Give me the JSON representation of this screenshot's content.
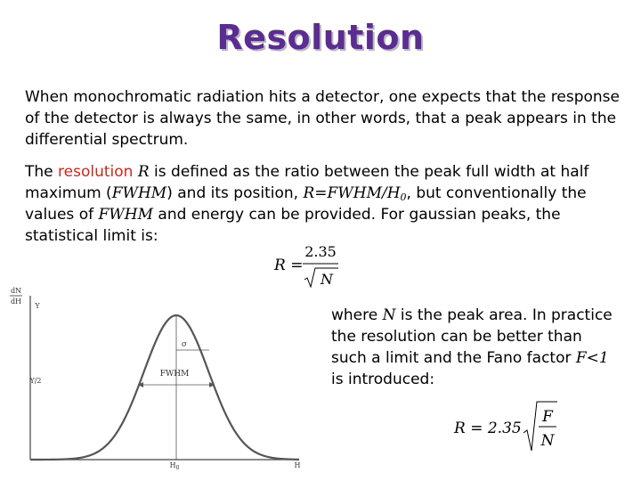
{
  "title": "Resolution",
  "para1": "When monochromatic radiation hits a detector, one expects that the response of the detector is always the same, in other words, that a peak appears in the differential spectrum.",
  "para2": {
    "t1": "The ",
    "hl": "resolution",
    "t2": " ",
    "m1": "R",
    "t3": " is defined as the ratio between the peak full width at half maximum (",
    "m2": "FWHM",
    "t4": ") and its position, ",
    "m3": "R=FWHM/H",
    "m3sub": "0",
    "t5": ", but conventionally the values of ",
    "m4": "FWHM",
    "t6": " and energy can be provided. For gaussian peaks, the statistical limit is:"
  },
  "formula1": {
    "lhs": "R =",
    "num": "2.35",
    "rad": "N"
  },
  "side": {
    "t1": "where ",
    "m1": "N",
    "t2": " is the peak area. In practice the resolution can be better than such a limit and the Fano factor ",
    "m2": "F<1",
    "t3": " is introduced:"
  },
  "formula2": {
    "lhs": "R = 2.35",
    "num": "F",
    "den": "N"
  },
  "graph": {
    "ylabel_num": "dN",
    "ylabel_den": "dH",
    "y_tick": "Y",
    "y_half_tick": "Y/2",
    "sigma_label": "σ",
    "fwhm_label": "FWHM",
    "x_peak_label": "H",
    "x_peak_sub": "0",
    "x_label": "H"
  }
}
